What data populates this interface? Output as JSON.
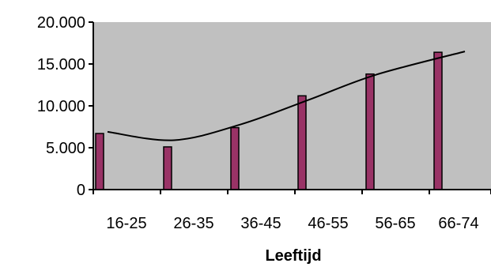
{
  "chart_data": {
    "type": "bar",
    "title": "",
    "xlabel": "Leeftijd",
    "ylabel": "",
    "categories": [
      "16-25",
      "26-35",
      "36-45",
      "46-55",
      "56-65",
      "66-74"
    ],
    "series": [
      {
        "values": [
          6700,
          5100,
          7400,
          11200,
          13800,
          16400
        ]
      }
    ],
    "trendline": {
      "type": "polynomial",
      "points": [
        {
          "x": "16-25",
          "y": 6900
        },
        {
          "x": "26-35",
          "y": 5900
        },
        {
          "x": "36-45",
          "y": 7800
        },
        {
          "x": "46-55",
          "y": 10700
        },
        {
          "x": "56-65",
          "y": 13700
        },
        {
          "x": "66-74",
          "y": 16500
        }
      ]
    },
    "yticks": [
      "0",
      "5.000",
      "10.000",
      "15.000",
      "20.000"
    ],
    "ylim": [
      0,
      20000
    ],
    "grid": false,
    "legend": "none",
    "colors": {
      "plot_background": "#c0c0c0",
      "bar_fill": "#993366",
      "bar_stroke": "#000000",
      "trendline": "#000000"
    }
  }
}
